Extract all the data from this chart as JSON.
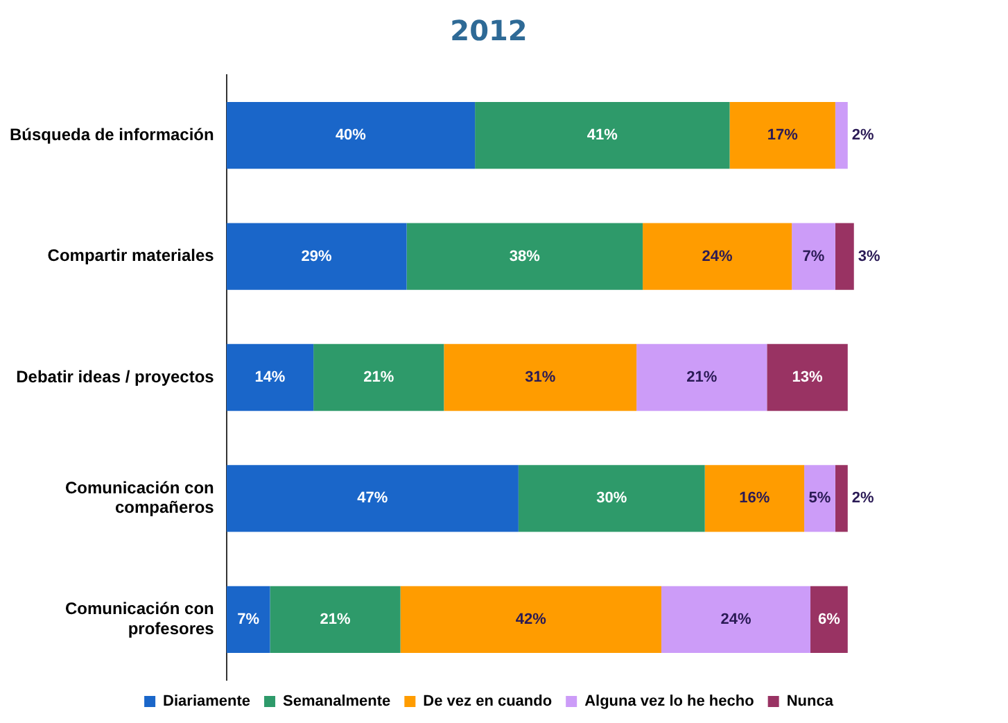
{
  "chart_data": {
    "type": "bar",
    "title": "2012",
    "orientation": "horizontal",
    "stacked": true,
    "legend": "bottom",
    "grid": false,
    "tick_labels": "y",
    "categories": [
      "Búsqueda de información",
      "Compartir materiales",
      "Debatir ideas / proyectos",
      "Comunicación con compañeros",
      "Comunicación con profesores"
    ],
    "series": [
      {
        "name": "Diariamente",
        "color": "#1a66c9",
        "values": [
          40,
          29,
          14,
          47,
          7
        ],
        "value_labels": [
          "40%",
          "29%",
          "14%",
          "47%",
          "7%"
        ]
      },
      {
        "name": "Semanalmente",
        "color": "#2e9a6a",
        "values": [
          41,
          38,
          21,
          30,
          21
        ],
        "value_labels": [
          "41%",
          "38%",
          "21%",
          "30%",
          "21%"
        ]
      },
      {
        "name": "De vez en cuando",
        "color": "#ff9c00",
        "values": [
          17,
          24,
          31,
          16,
          42
        ],
        "value_labels": [
          "17%",
          "24%",
          "31%",
          "16%",
          "42%"
        ]
      },
      {
        "name": "Alguna vez lo he hecho",
        "color": "#cc9cf8",
        "values": [
          2,
          7,
          21,
          5,
          24
        ],
        "value_labels": [
          "2%",
          "7%",
          "21%",
          "5%",
          "24%"
        ]
      },
      {
        "name": "Nunca",
        "color": "#993363",
        "values": [
          null,
          3,
          13,
          2,
          6
        ],
        "value_labels": [
          null,
          "3%",
          "13%",
          "2%",
          "6%"
        ]
      }
    ]
  }
}
